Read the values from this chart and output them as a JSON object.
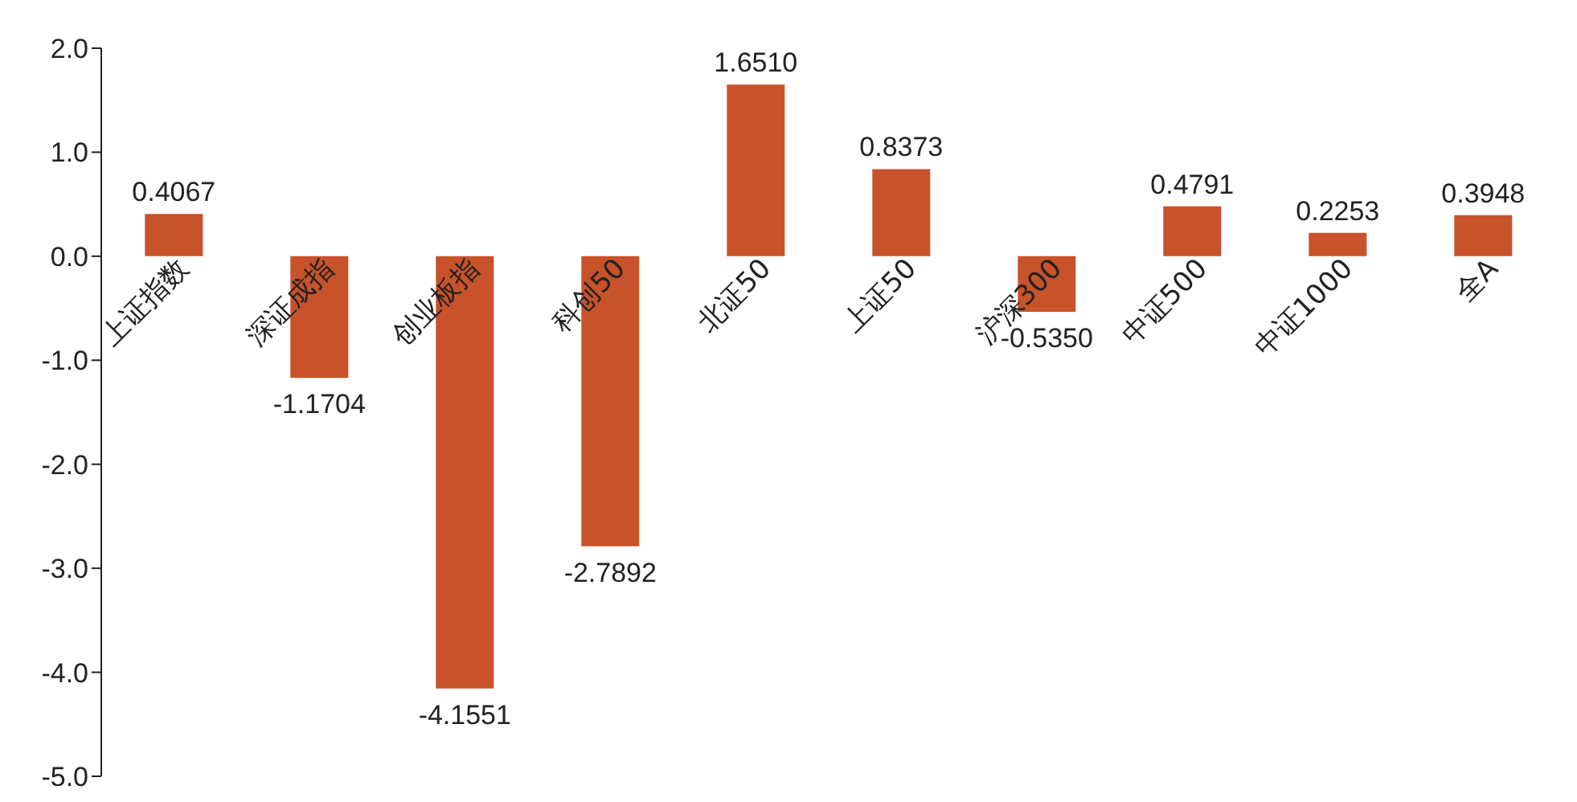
{
  "chart_data": {
    "type": "bar",
    "categories": [
      "上证指数",
      "深证成指",
      "创业板指",
      "科创50",
      "北证50",
      "上证50",
      "沪深300",
      "中证500",
      "中证1000",
      "全A"
    ],
    "values": [
      0.4067,
      -1.1704,
      -4.1551,
      -2.7892,
      1.651,
      0.8373,
      -0.535,
      0.4791,
      0.2253,
      0.3948
    ],
    "value_labels": [
      "0.4067",
      "-1.1704",
      "-4.1551",
      "-2.7892",
      "1.6510",
      "0.8373",
      "-0.5350",
      "0.4791",
      "0.2253",
      "0.3948"
    ],
    "color": "#c8522a",
    "ylim": [
      -5,
      2
    ],
    "yticks": [
      {
        "value": -5,
        "label": "-5.0"
      },
      {
        "value": -4,
        "label": "-4.0"
      },
      {
        "value": -3,
        "label": "-3.0"
      },
      {
        "value": -2,
        "label": "-2.0"
      },
      {
        "value": -1,
        "label": "-1.0"
      },
      {
        "value": 0,
        "label": "0.0"
      },
      {
        "value": 1,
        "label": "1.0"
      },
      {
        "value": 2,
        "label": "2.0"
      }
    ],
    "grid": false,
    "legend": false
  }
}
